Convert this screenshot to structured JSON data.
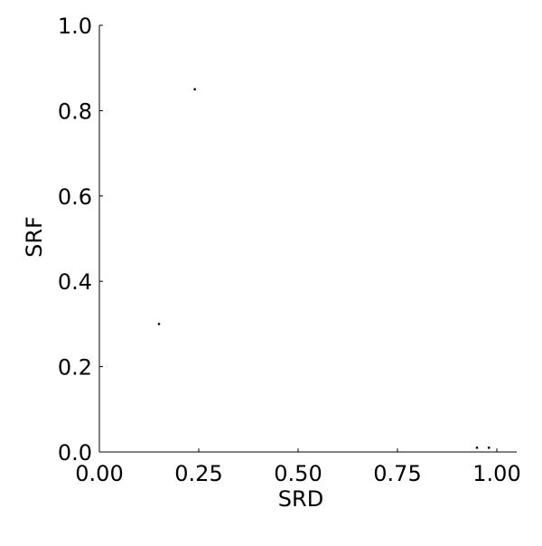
{
  "chart_data": {
    "type": "scatter",
    "title": "",
    "xlabel": "SRD",
    "ylabel": "SRF",
    "xlim": [
      0,
      1.05
    ],
    "ylim": [
      0,
      1.0
    ],
    "x_ticks": [
      0.0,
      0.25,
      0.5,
      0.75,
      1.0
    ],
    "x_tick_labels": [
      "0.00",
      "0.25",
      "0.50",
      "0.75",
      "1.00"
    ],
    "y_ticks": [
      0.0,
      0.2,
      0.4,
      0.6,
      0.8,
      1.0
    ],
    "y_tick_labels": [
      "0.0",
      "0.2",
      "0.4",
      "0.6",
      "0.8",
      "1.0"
    ],
    "grid": false,
    "legend": false,
    "series": [
      {
        "color": "#000000",
        "points": [
          {
            "x": 0.24,
            "y": 0.85
          },
          {
            "x": 0.15,
            "y": 0.3
          },
          {
            "x": 0.95,
            "y": 0.01
          },
          {
            "x": 0.98,
            "y": 0.01
          }
        ]
      }
    ]
  }
}
